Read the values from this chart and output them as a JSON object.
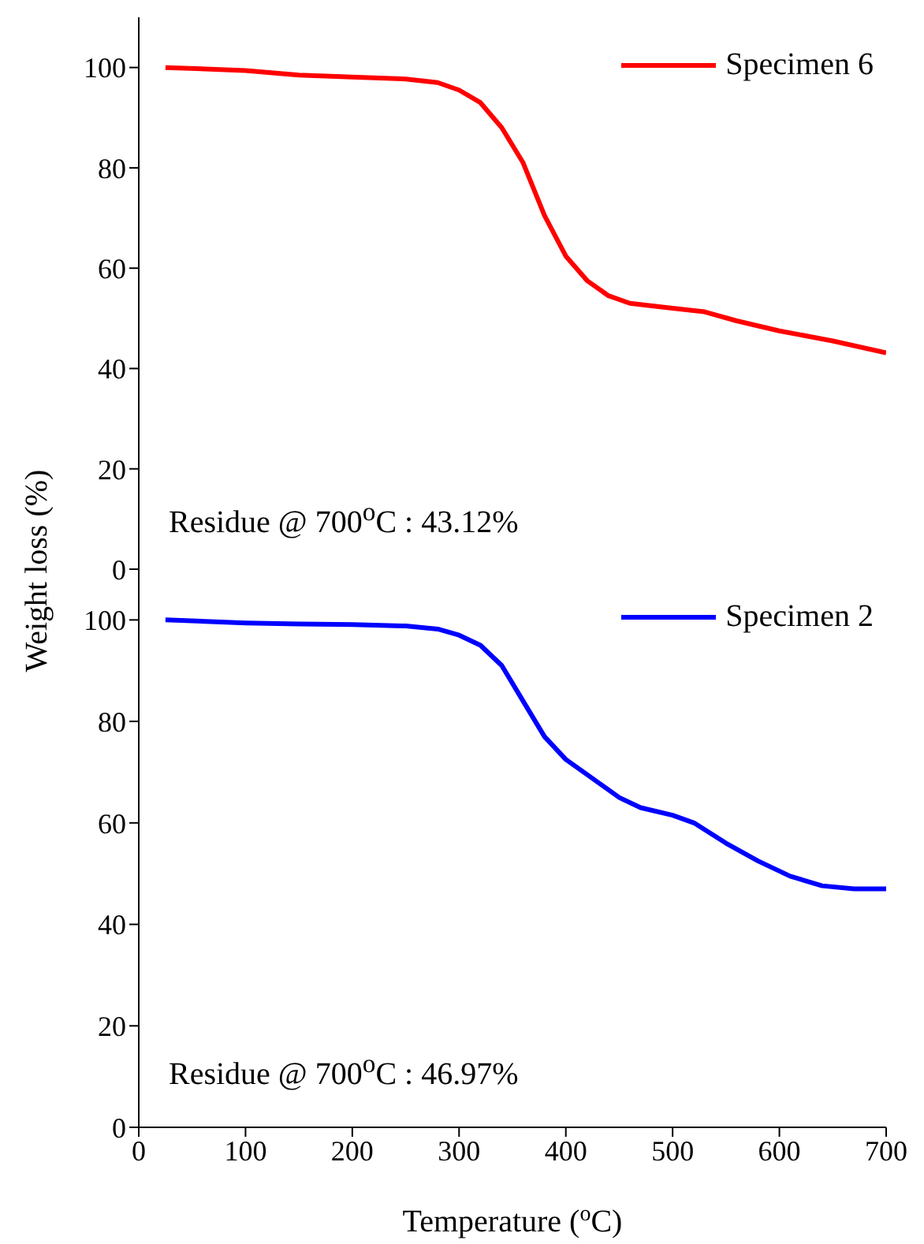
{
  "chart_data": [
    {
      "type": "line",
      "ylabel": "Weight loss (%)",
      "xlim": [
        0,
        700
      ],
      "xticks": [
        0,
        100,
        200,
        300,
        400,
        500,
        600,
        700
      ],
      "ylim": [
        0,
        110
      ],
      "yticks": [
        0,
        20,
        40,
        60,
        80,
        100
      ],
      "tick_labels": "y",
      "legend": "top right",
      "grid": false,
      "annotations": [
        "Residue @ 700$^{o}$C : 43.12%"
      ],
      "series": [
        {
          "name": "Specimen 6",
          "color": "#ff0000",
          "x": [
            25,
            100,
            150,
            200,
            250,
            280,
            300,
            320,
            340,
            360,
            380,
            400,
            420,
            440,
            460,
            500,
            530,
            560,
            600,
            650,
            700
          ],
          "values": [
            100,
            99.4,
            98.5,
            98.1,
            97.7,
            97,
            95.5,
            93,
            88,
            81,
            70.5,
            62.4,
            57.5,
            54.5,
            53,
            52,
            51.3,
            49.5,
            47.5,
            45.5,
            43.12
          ]
        }
      ]
    },
    {
      "type": "line",
      "xlabel": "Temperature ($^{o}$C)",
      "xlim": [
        0,
        700
      ],
      "xticks": [
        0,
        100,
        200,
        300,
        400,
        500,
        600,
        700
      ],
      "ylim": [
        0,
        110
      ],
      "yticks": [
        0,
        20,
        40,
        60,
        80,
        100
      ],
      "legend": "top right",
      "grid": false,
      "annotations": [
        "Residue @ 700$^{o}$C : 46.97%"
      ],
      "series": [
        {
          "name": "Specimen 2",
          "color": "#0000ff",
          "x": [
            25,
            100,
            150,
            200,
            250,
            280,
            300,
            320,
            340,
            360,
            380,
            400,
            420,
            450,
            470,
            500,
            520,
            550,
            580,
            610,
            640,
            670,
            700
          ],
          "values": [
            100,
            99.4,
            99.2,
            99.1,
            98.8,
            98.2,
            97,
            95,
            91,
            84,
            77,
            72.5,
            69.5,
            65,
            63,
            61.5,
            60,
            56,
            52.5,
            49.5,
            47.6,
            47,
            47
          ]
        }
      ]
    }
  ]
}
